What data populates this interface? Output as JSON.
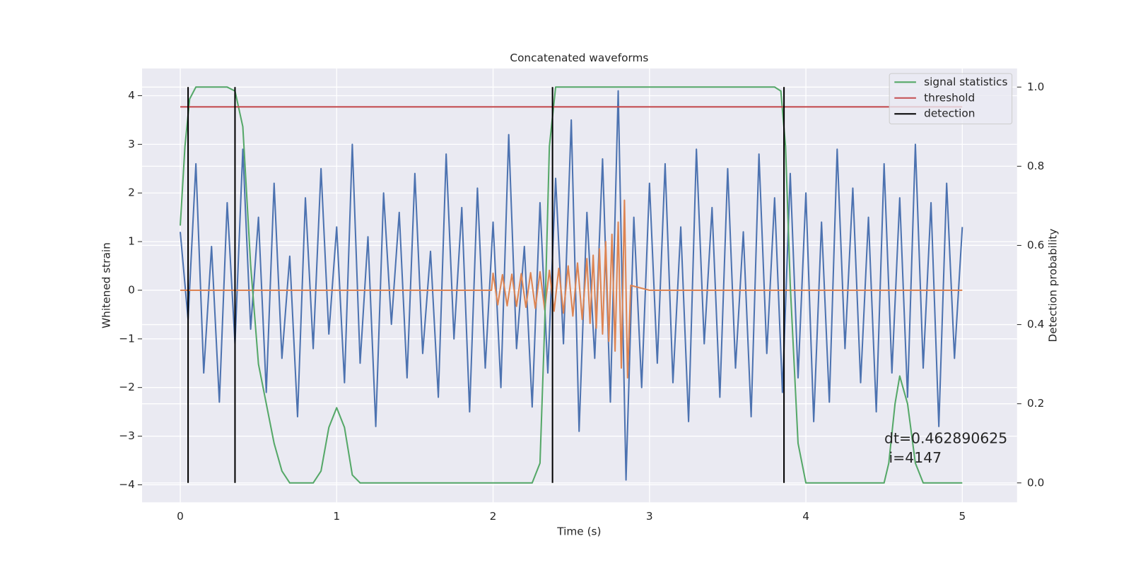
{
  "chart_data": {
    "type": "line",
    "title": "Concatenated waveforms",
    "x_label": "Time (s)",
    "y_label": "Whitened strain",
    "y2_label": "Detection probability",
    "xlim": [
      -0.244,
      5.35
    ],
    "ylim": [
      -4.36,
      4.56
    ],
    "y2lim": [
      -0.049,
      1.047
    ],
    "xticks": [
      0,
      1,
      2,
      3,
      4,
      5
    ],
    "yticks": [
      {
        "value": -4,
        "label": "−4"
      },
      {
        "value": -3,
        "label": "−3"
      },
      {
        "value": -2,
        "label": "−2"
      },
      {
        "value": -1,
        "label": "−1"
      },
      0,
      1,
      2,
      3,
      4
    ],
    "y2ticks": [
      {
        "value": 0,
        "label": "0.0"
      },
      {
        "value": 0.2,
        "label": "0.2"
      },
      {
        "value": 0.4,
        "label": "0.4"
      },
      {
        "value": 0.6,
        "label": "0.6"
      },
      {
        "value": 0.8,
        "label": "0.8"
      },
      {
        "value": 1,
        "label": "1.0"
      }
    ],
    "grid": true,
    "legend": "upper right",
    "series": [
      {
        "color": "#4c72b0",
        "x": [
          0,
          0.05,
          0.1,
          0.15,
          0.2,
          0.25,
          0.3,
          0.35,
          0.4,
          0.45,
          0.5,
          0.55,
          0.6,
          0.65,
          0.7,
          0.75,
          0.8,
          0.85,
          0.9,
          0.95,
          1,
          1.05,
          1.1,
          1.15,
          1.2,
          1.25,
          1.3,
          1.35,
          1.4,
          1.45,
          1.5,
          1.55,
          1.6,
          1.65,
          1.7,
          1.75,
          1.8,
          1.85,
          1.9,
          1.95,
          2,
          2.05,
          2.1,
          2.15,
          2.2,
          2.25,
          2.3,
          2.35,
          2.4,
          2.45,
          2.5,
          2.55,
          2.6,
          2.65,
          2.7,
          2.75,
          2.8,
          2.85,
          2.9,
          2.95,
          3,
          3.05,
          3.1,
          3.15,
          3.2,
          3.25,
          3.3,
          3.35,
          3.4,
          3.45,
          3.5,
          3.55,
          3.6,
          3.65,
          3.7,
          3.75,
          3.8,
          3.85,
          3.9,
          3.95,
          4,
          4.05,
          4.1,
          4.15,
          4.2,
          4.25,
          4.3,
          4.35,
          4.4,
          4.45,
          4.5,
          4.55,
          4.6,
          4.65,
          4.7,
          4.75,
          4.8,
          4.85,
          4.9,
          4.95,
          5
        ],
        "values": [
          1.2,
          -0.6,
          2.6,
          -1.7,
          0.9,
          -2.3,
          1.8,
          -1.1,
          2.9,
          -0.8,
          1.5,
          -2.1,
          2.2,
          -1.4,
          0.7,
          -2.6,
          1.9,
          -1.2,
          2.5,
          -0.9,
          1.3,
          -1.9,
          3.0,
          -1.5,
          1.1,
          -2.8,
          2.0,
          -0.7,
          1.6,
          -1.8,
          2.4,
          -1.3,
          0.8,
          -2.2,
          2.8,
          -1.0,
          1.7,
          -2.5,
          2.1,
          -1.6,
          1.4,
          -2.0,
          3.2,
          -1.2,
          0.9,
          -2.4,
          1.8,
          -1.7,
          2.3,
          -1.1,
          3.5,
          -2.9,
          1.6,
          -1.4,
          2.7,
          -2.3,
          4.1,
          -3.9,
          1.5,
          -2.0,
          2.2,
          -1.5,
          2.6,
          -1.9,
          1.3,
          -2.7,
          2.9,
          -1.1,
          1.7,
          -2.2,
          2.5,
          -1.6,
          1.2,
          -2.6,
          2.8,
          -1.3,
          1.9,
          -2.1,
          2.4,
          -1.8,
          2.0,
          -2.7,
          1.4,
          -2.3,
          2.9,
          -1.2,
          2.1,
          -1.9,
          1.5,
          -2.5,
          2.6,
          -1.7,
          1.9,
          -2.2,
          3.0,
          -1.6,
          1.8,
          -2.8,
          2.2,
          -1.4,
          1.3
        ]
      },
      {
        "color": "#dd8452",
        "x": [
          0,
          1.99,
          2.0,
          2.03,
          2.06,
          2.09,
          2.12,
          2.15,
          2.18,
          2.21,
          2.24,
          2.27,
          2.3,
          2.33,
          2.36,
          2.39,
          2.42,
          2.45,
          2.48,
          2.51,
          2.54,
          2.57,
          2.6,
          2.62,
          2.64,
          2.66,
          2.68,
          2.7,
          2.72,
          2.74,
          2.76,
          2.78,
          2.8,
          2.82,
          2.84,
          2.86,
          2.88,
          3.0,
          5.0
        ],
        "values": [
          0,
          0,
          0.35,
          -0.3,
          0.32,
          -0.32,
          0.33,
          -0.33,
          0.34,
          -0.35,
          0.36,
          -0.37,
          0.38,
          -0.4,
          0.41,
          -0.43,
          0.45,
          -0.47,
          0.5,
          -0.53,
          0.56,
          -0.6,
          0.65,
          -0.68,
          0.72,
          -0.78,
          0.85,
          -0.9,
          1.0,
          -1.05,
          1.15,
          -1.25,
          1.4,
          -1.6,
          1.85,
          -1.8,
          0.1,
          0,
          0
        ]
      },
      {
        "name": "signal statistics",
        "color": "#55a868",
        "axis": "y2",
        "x": [
          0,
          0.03,
          0.06,
          0.1,
          0.15,
          0.3,
          0.35,
          0.4,
          0.45,
          0.5,
          0.55,
          0.6,
          0.65,
          0.7,
          0.85,
          0.9,
          0.95,
          1.0,
          1.05,
          1.1,
          1.15,
          2.25,
          2.3,
          2.33,
          2.36,
          2.4,
          2.45,
          3.8,
          3.84,
          3.87,
          3.9,
          3.95,
          4.0,
          4.5,
          4.53,
          4.57,
          4.6,
          4.65,
          4.7,
          4.75,
          5.0
        ],
        "values": [
          0.65,
          0.85,
          0.97,
          1.0,
          1.0,
          1.0,
          0.99,
          0.9,
          0.55,
          0.3,
          0.2,
          0.1,
          0.03,
          0.0,
          0.0,
          0.03,
          0.14,
          0.19,
          0.14,
          0.02,
          0.0,
          0.0,
          0.05,
          0.4,
          0.85,
          1.0,
          1.0,
          1.0,
          0.99,
          0.85,
          0.5,
          0.1,
          0.0,
          0.0,
          0.05,
          0.2,
          0.27,
          0.2,
          0.05,
          0.0,
          0.0
        ]
      },
      {
        "name": "threshold",
        "color": "#c44e52",
        "axis": "y2",
        "x": [
          0,
          5
        ],
        "values": [
          0.95,
          0.95
        ]
      },
      {
        "name": "detection",
        "color": "#000000",
        "axis": "y2",
        "kind": "vlines",
        "x": [
          0.05,
          0.35,
          2.38,
          3.86
        ],
        "ymin": 0,
        "ymax": 1
      }
    ],
    "annotation": [
      "dt=0.462890625",
      " i=4147"
    ]
  }
}
